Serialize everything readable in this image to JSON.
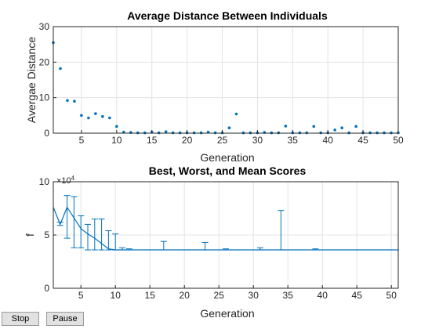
{
  "buttons": {
    "stop_label": "Stop",
    "pause_label": "Pause"
  },
  "colors": {
    "series": "#0072BD",
    "grid": "#e3e3e3",
    "axis": "#262626",
    "background": "#ffffff"
  },
  "chart_data": [
    {
      "type": "scatter",
      "title": "Average Distance Between Individuals",
      "xlabel": "Generation",
      "ylabel": "Avergae Distance",
      "xlim": [
        1,
        50
      ],
      "ylim": [
        0,
        30
      ],
      "xticks": [
        5,
        10,
        15,
        20,
        25,
        30,
        35,
        40,
        45,
        50
      ],
      "yticks": [
        0,
        10,
        20,
        30
      ],
      "grid": true,
      "x": [
        1,
        2,
        3,
        4,
        5,
        6,
        7,
        8,
        9,
        10,
        11,
        12,
        13,
        14,
        15,
        16,
        17,
        18,
        19,
        20,
        21,
        22,
        23,
        24,
        25,
        26,
        27,
        28,
        29,
        30,
        31,
        32,
        33,
        34,
        35,
        36,
        37,
        38,
        39,
        40,
        41,
        42,
        43,
        44,
        45,
        46,
        47,
        48,
        49,
        50
      ],
      "y": [
        25.5,
        18.2,
        9.2,
        9.0,
        5.0,
        4.3,
        5.5,
        4.7,
        4.3,
        1.9,
        0.3,
        0.2,
        0.1,
        0.1,
        0.3,
        0.1,
        0.4,
        0.1,
        0.1,
        0.1,
        0.1,
        0.1,
        0.3,
        0.1,
        0.1,
        1.5,
        5.4,
        0.1,
        0.1,
        0.1,
        0.2,
        0.1,
        0.1,
        2.0,
        0.1,
        0.1,
        0.1,
        1.9,
        0.1,
        0.1,
        0.9,
        1.5,
        0.1,
        1.9,
        0.1,
        0.1,
        0.1,
        0.1,
        0.1,
        0.1
      ]
    },
    {
      "type": "line",
      "title": "Best, Worst, and Mean Scores",
      "xlabel": "Generation",
      "ylabel": "f",
      "exponent_label": "×10",
      "exponent": "4",
      "xlim": [
        1,
        51
      ],
      "ylim": [
        0,
        100000
      ],
      "xticks": [
        5,
        10,
        15,
        20,
        25,
        30,
        35,
        40,
        45,
        50
      ],
      "yticks": [
        0,
        50000,
        100000
      ],
      "ytick_labels": [
        "0",
        "5",
        "10"
      ],
      "grid": true,
      "x": [
        1,
        2,
        3,
        4,
        5,
        6,
        7,
        8,
        9,
        10,
        11,
        12,
        13,
        14,
        15,
        16,
        17,
        18,
        19,
        20,
        21,
        22,
        23,
        24,
        25,
        26,
        27,
        28,
        29,
        30,
        31,
        32,
        33,
        34,
        35,
        36,
        37,
        38,
        39,
        40,
        41,
        42,
        43,
        44,
        45,
        46,
        47,
        48,
        49,
        50,
        51
      ],
      "mean": [
        76000,
        60000,
        76000,
        66000,
        56000,
        51000,
        47000,
        42000,
        37000,
        36000,
        36000,
        36000,
        36000,
        36000,
        36000,
        36000,
        36000,
        36000,
        36000,
        36000,
        36000,
        36000,
        36000,
        36000,
        36000,
        36000,
        36000,
        36000,
        36000,
        36000,
        36000,
        36000,
        36000,
        36000,
        36000,
        36000,
        36000,
        36000,
        36000,
        36000,
        36000,
        36000,
        36000,
        36000,
        36000,
        36000,
        36000,
        36000,
        36000,
        36000,
        36000
      ],
      "best": [
        null,
        59000,
        47000,
        38000,
        38000,
        36000,
        36000,
        36000,
        36000,
        36000,
        36000,
        36000,
        null,
        null,
        null,
        null,
        36000,
        null,
        null,
        null,
        null,
        null,
        36000,
        null,
        null,
        36000,
        null,
        null,
        null,
        null,
        36000,
        null,
        null,
        36000,
        null,
        null,
        null,
        null,
        36000,
        null,
        null,
        null,
        null,
        null,
        null,
        null,
        null,
        null,
        null,
        null,
        null
      ],
      "worst": [
        null,
        62000,
        87000,
        86000,
        68000,
        60000,
        65000,
        65000,
        54000,
        51000,
        38000,
        37000,
        null,
        null,
        null,
        null,
        44000,
        null,
        null,
        null,
        null,
        null,
        43000,
        null,
        null,
        37000,
        null,
        null,
        null,
        null,
        38000,
        null,
        null,
        73000,
        null,
        null,
        null,
        null,
        37000,
        null,
        null,
        null,
        null,
        null,
        null,
        null,
        null,
        null,
        null,
        null,
        null
      ]
    }
  ]
}
